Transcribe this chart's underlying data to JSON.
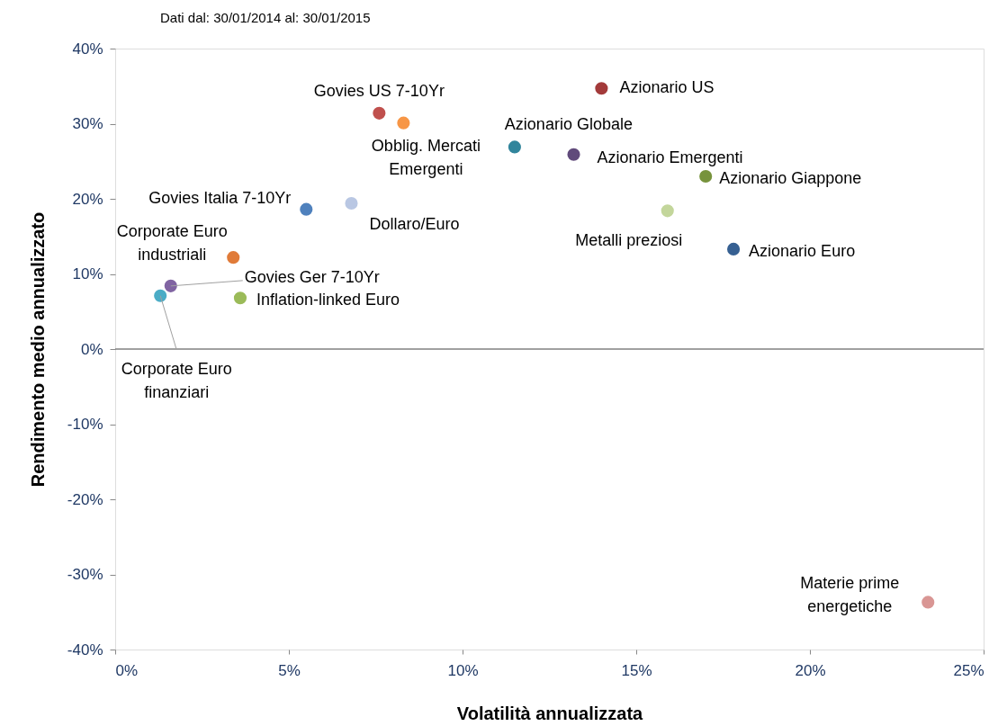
{
  "chart_data": {
    "type": "scatter",
    "subtitle": "Dati dal:   30/01/2014      al:    30/01/2015",
    "xlabel": "Volatilità annualizzata",
    "ylabel": "Rendimento medio annualizzato",
    "xlim": [
      0,
      25
    ],
    "ylim": [
      -40,
      40
    ],
    "xticks": [
      {
        "value": 0,
        "label": "0%"
      },
      {
        "value": 5,
        "label": "5%"
      },
      {
        "value": 10,
        "label": "10%"
      },
      {
        "value": 15,
        "label": "15%"
      },
      {
        "value": 20,
        "label": "20%"
      },
      {
        "value": 25,
        "label": "25%"
      }
    ],
    "yticks": [
      {
        "value": -40,
        "label": "-40%"
      },
      {
        "value": -30,
        "label": "-30%"
      },
      {
        "value": -20,
        "label": "-20%"
      },
      {
        "value": -10,
        "label": "-10%"
      },
      {
        "value": 0,
        "label": "0%"
      },
      {
        "value": 10,
        "label": "10%"
      },
      {
        "value": 20,
        "label": "20%"
      },
      {
        "value": 30,
        "label": "30%"
      },
      {
        "value": 40,
        "label": "40%"
      }
    ],
    "grid": false,
    "marker": "circle",
    "ref_lines": [
      {
        "axis": "y",
        "value": 0,
        "color": "#808080"
      }
    ],
    "series": [
      {
        "name": "Azionario US",
        "color": "#a33a3a",
        "x": [
          14.0
        ],
        "values": [
          34.7
        ]
      },
      {
        "name": "Govies US 7-10Yr",
        "color": "#c0504d",
        "x": [
          7.6
        ],
        "values": [
          31.4
        ]
      },
      {
        "name": "Obblig. Mercati\nEmergenti",
        "color": "#f79646",
        "x": [
          8.3
        ],
        "values": [
          30.1
        ]
      },
      {
        "name": "Azionario Globale",
        "color": "#31859c",
        "x": [
          11.5
        ],
        "values": [
          26.9
        ]
      },
      {
        "name": "Azionario Emergenti",
        "color": "#604a7b",
        "x": [
          13.2
        ],
        "values": [
          25.9
        ]
      },
      {
        "name": "Azionario Giappone",
        "color": "#77933c",
        "x": [
          17.0
        ],
        "values": [
          23.0
        ]
      },
      {
        "name": "Dollaro/Euro",
        "color": "#b9c7e3",
        "x": [
          6.8
        ],
        "values": [
          19.4
        ]
      },
      {
        "name": "Govies Italia 7-10Yr",
        "color": "#4f81bd",
        "x": [
          5.5
        ],
        "values": [
          18.6
        ]
      },
      {
        "name": "Metalli preziosi",
        "color": "#c3d69b",
        "x": [
          15.9
        ],
        "values": [
          18.4
        ]
      },
      {
        "name": "Azionario Euro",
        "color": "#366092",
        "x": [
          17.8
        ],
        "values": [
          13.3
        ]
      },
      {
        "name": "Corporate Euro\nindustriali",
        "color": "#e07b39",
        "x": [
          3.4
        ],
        "values": [
          12.2
        ]
      },
      {
        "name": "Corporate Euro\nfinanziari",
        "color": "#4bacc6",
        "x": [
          1.3
        ],
        "values": [
          7.1
        ]
      },
      {
        "name": "Govies Ger 7-10Yr",
        "color": "#8064a2",
        "x": [
          1.6
        ],
        "values": [
          8.4
        ]
      },
      {
        "name": "Inflation-linked Euro",
        "color": "#9bbb59",
        "x": [
          3.6
        ],
        "values": [
          6.8
        ]
      },
      {
        "name": "Materie prime\nenergetiche",
        "color": "#d99694",
        "x": [
          23.4
        ],
        "values": [
          -33.7
        ]
      }
    ]
  }
}
